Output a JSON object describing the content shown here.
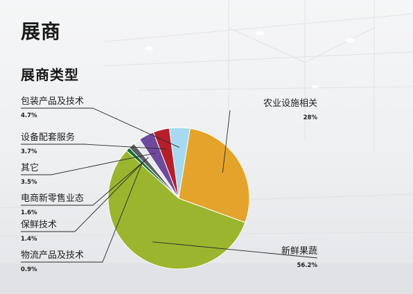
{
  "page": {
    "title": "展商"
  },
  "section": {
    "title": "展商类型"
  },
  "chart_data": {
    "type": "pie",
    "title": "展商类型",
    "unit": "%",
    "start_angle_deg": 20,
    "slices": [
      {
        "label": "新鲜果蔬",
        "value": 56.2,
        "value_label": "56.2%",
        "color": "#9bb52f"
      },
      {
        "label": "物流产品及技术",
        "value": 0.9,
        "value_label": "0.9%",
        "color": "#17703a"
      },
      {
        "label": "保鲜技术",
        "value": 1.4,
        "value_label": "1.4%",
        "color": "#5c5f63"
      },
      {
        "label": "电商新零售业态",
        "value": 1.6,
        "value_label": "1.6%",
        "color": "#e8eaee"
      },
      {
        "label": "其它",
        "value": 3.5,
        "value_label": "3.5%",
        "color": "#6e4a9c"
      },
      {
        "label": "设备配套服务",
        "value": 3.7,
        "value_label": "3.7%",
        "color": "#b51f2a"
      },
      {
        "label": "包装产品及技术",
        "value": 4.7,
        "value_label": "4.7%",
        "color": "#a7daf0"
      },
      {
        "label": "农业设施相关",
        "value": 28,
        "value_label": "28%",
        "color": "#e4a42c"
      }
    ]
  }
}
